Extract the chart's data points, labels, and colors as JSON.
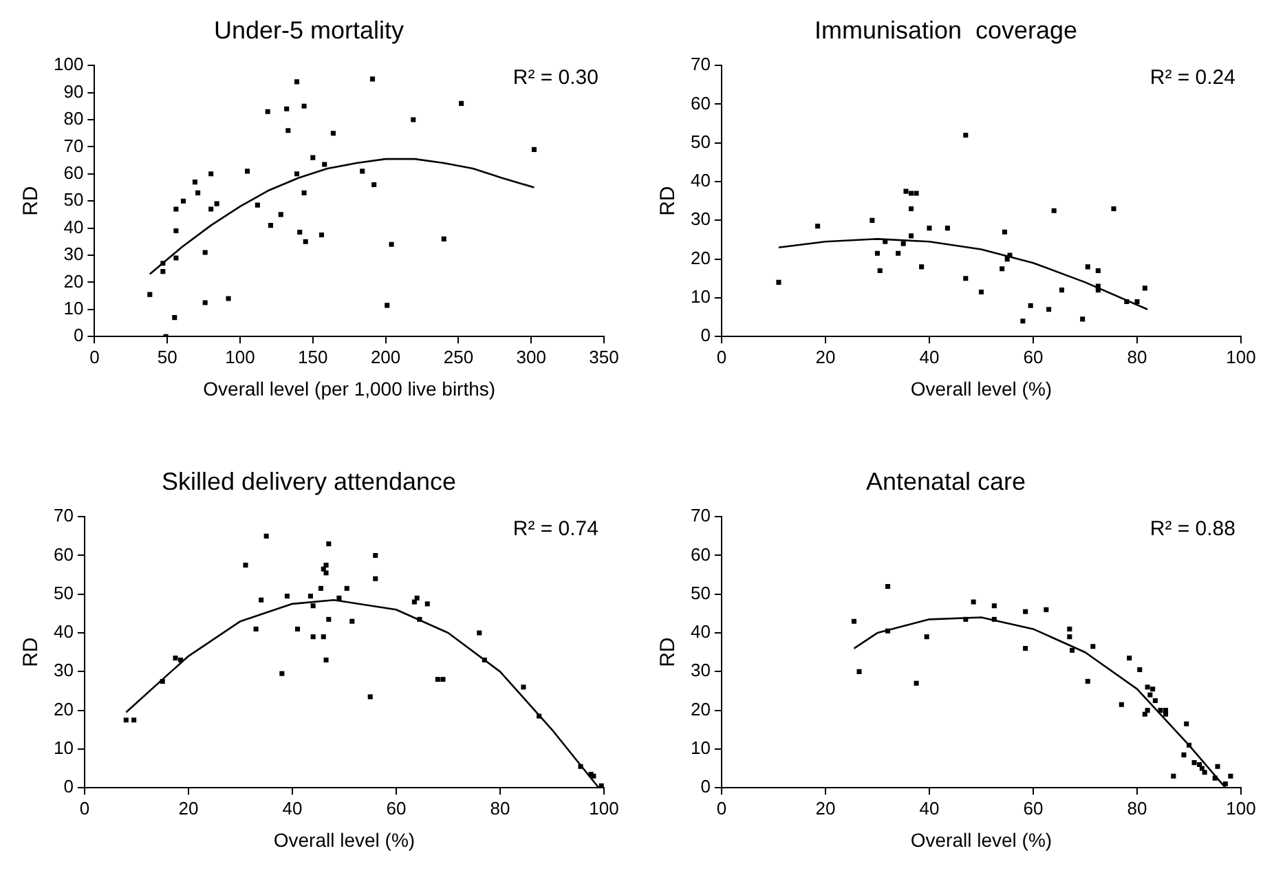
{
  "chart_data": [
    {
      "type": "scatter",
      "title": "Under-5 mortality",
      "xlabel": "Overall level (per 1,000 live births)",
      "ylabel": "RD",
      "annotations": [
        "R² = 0.30"
      ],
      "xlim": [
        0,
        350
      ],
      "xticks": [
        0,
        50,
        100,
        150,
        200,
        250,
        300,
        350
      ],
      "ylim": [
        0,
        100
      ],
      "yticks": [
        0,
        10,
        20,
        30,
        40,
        50,
        60,
        70,
        80,
        90,
        100
      ],
      "grid": false,
      "legend": false,
      "marker": "square",
      "series": [
        {
          "color": "#000000",
          "x": [
            38,
            47,
            47,
            49,
            56,
            56,
            56,
            55,
            61,
            69,
            71,
            76,
            76,
            80,
            80,
            84,
            92,
            105,
            112,
            119,
            121,
            128,
            132,
            133,
            139,
            139,
            141,
            144,
            144,
            145,
            150,
            156,
            158,
            164,
            184,
            191,
            192,
            201,
            204,
            219,
            240,
            252,
            302
          ],
          "values": [
            15.5,
            27,
            24,
            0,
            39,
            47,
            29,
            7,
            50,
            57,
            53,
            31,
            12.5,
            47,
            60,
            49,
            14,
            61,
            48.5,
            83,
            41,
            45,
            84,
            76,
            94,
            60,
            38.5,
            85,
            53,
            35,
            66,
            37.5,
            63.5,
            75,
            61,
            95,
            56,
            11.5,
            34,
            80,
            36,
            86,
            69
          ]
        },
        {
          "type": "line",
          "marker": "none",
          "color": "#000000",
          "x": [
            38,
            60,
            80,
            100,
            120,
            140,
            160,
            180,
            200,
            220,
            240,
            260,
            280,
            302
          ],
          "values": [
            23,
            33,
            41,
            48,
            54,
            58.5,
            62,
            64,
            65.5,
            65.5,
            64,
            62,
            58.5,
            55
          ]
        }
      ]
    },
    {
      "type": "scatter",
      "title": "Immunisation  coverage",
      "xlabel": "Overall level (%)",
      "ylabel": "RD",
      "annotations": [
        "R² = 0.24"
      ],
      "xlim": [
        0,
        100
      ],
      "xticks": [
        0,
        20,
        40,
        60,
        80,
        100
      ],
      "ylim": [
        0,
        70
      ],
      "yticks": [
        0,
        10,
        20,
        30,
        40,
        50,
        60,
        70
      ],
      "grid": false,
      "legend": false,
      "marker": "square",
      "series": [
        {
          "color": "#000000",
          "x": [
            11,
            18.5,
            29,
            30,
            30.5,
            31.5,
            34,
            35,
            35.5,
            36.5,
            37.5,
            36.5,
            36.5,
            38.5,
            40,
            43.5,
            47,
            47,
            50,
            54,
            54.5,
            55,
            55.5,
            58,
            59.5,
            63,
            64,
            65.5,
            69.5,
            70.5,
            72.5,
            72.5,
            72.5,
            75.5,
            78,
            80,
            81.5
          ],
          "values": [
            14,
            28.5,
            30,
            21.5,
            17,
            24.5,
            21.5,
            24,
            37.5,
            37,
            37,
            33,
            26,
            18,
            28,
            28,
            52,
            15,
            11.5,
            17.5,
            27,
            20,
            21,
            4,
            8,
            7,
            32.5,
            12,
            4.5,
            18,
            17,
            13,
            12,
            33,
            9,
            9,
            12.5
          ]
        },
        {
          "type": "line",
          "marker": "none",
          "color": "#000000",
          "x": [
            11,
            20,
            30,
            40,
            50,
            60,
            70,
            82
          ],
          "values": [
            23,
            24.5,
            25.2,
            24.5,
            22.5,
            19,
            14,
            7
          ]
        }
      ]
    },
    {
      "type": "scatter",
      "title": "Skilled delivery attendance",
      "xlabel": "Overall level (%)",
      "ylabel": "RD",
      "annotations": [
        "R² = 0.74"
      ],
      "xlim": [
        0,
        100
      ],
      "xticks": [
        0,
        20,
        40,
        60,
        80,
        100
      ],
      "ylim": [
        0,
        70
      ],
      "yticks": [
        0,
        10,
        20,
        30,
        40,
        50,
        60,
        70
      ],
      "grid": false,
      "legend": false,
      "marker": "square",
      "series": [
        {
          "color": "#000000",
          "x": [
            8,
            9.5,
            15,
            17.5,
            18.5,
            31,
            33,
            34,
            35,
            38,
            39,
            41,
            43.5,
            44,
            44,
            45.5,
            46,
            46,
            46.5,
            46.5,
            47,
            46.5,
            47,
            49,
            50.5,
            51.5,
            55,
            56,
            56,
            63.5,
            64,
            64.5,
            66,
            68,
            69,
            76,
            77,
            84.5,
            87.5,
            95.5,
            97.5,
            98,
            99.5
          ],
          "values": [
            17.5,
            17.5,
            27.5,
            33.5,
            33,
            57.5,
            41,
            48.5,
            65,
            29.5,
            49.5,
            41,
            49.5,
            47,
            39,
            51.5,
            56.5,
            39,
            57.5,
            55.5,
            63,
            33,
            43.5,
            49,
            51.5,
            43,
            23.5,
            60,
            54,
            48,
            49,
            43.5,
            47.5,
            28,
            28,
            40,
            33,
            26,
            18.5,
            5.5,
            3.5,
            3,
            0.5
          ]
        },
        {
          "type": "line",
          "marker": "none",
          "color": "#000000",
          "x": [
            8,
            15,
            20,
            30,
            40,
            48,
            60,
            70,
            80,
            90,
            99
          ],
          "values": [
            19.5,
            28,
            34,
            43,
            47.5,
            48.5,
            46,
            40,
            30,
            15,
            0
          ]
        }
      ]
    },
    {
      "type": "scatter",
      "title": "Antenatal care",
      "xlabel": "Overall level (%)",
      "ylabel": "RD",
      "annotations": [
        "R² = 0.88"
      ],
      "xlim": [
        0,
        100
      ],
      "xticks": [
        0,
        20,
        40,
        60,
        80,
        100
      ],
      "ylim": [
        0,
        70
      ],
      "yticks": [
        0,
        10,
        20,
        30,
        40,
        50,
        60,
        70
      ],
      "grid": false,
      "legend": false,
      "marker": "square",
      "series": [
        {
          "color": "#000000",
          "x": [
            25.5,
            26.5,
            32,
            32,
            37.5,
            39.5,
            47,
            48.5,
            52.5,
            52.5,
            58.5,
            58.5,
            62.5,
            67,
            67,
            67.5,
            70.5,
            71.5,
            77,
            78.5,
            80.5,
            81.5,
            82,
            82,
            82.5,
            83,
            83.5,
            84.5,
            85.5,
            85.5,
            87,
            89,
            89.5,
            90,
            91,
            92,
            92.5,
            93,
            95,
            95.5,
            97,
            98
          ],
          "values": [
            43,
            30,
            52,
            40.5,
            27,
            39,
            43.5,
            48,
            47,
            43.5,
            36,
            45.5,
            46,
            41,
            39,
            35.5,
            27.5,
            36.5,
            21.5,
            33.5,
            30.5,
            19,
            26,
            20,
            24,
            25.5,
            22.5,
            20,
            19,
            20,
            3,
            8.5,
            16.5,
            11,
            6.5,
            6,
            5,
            4,
            2.5,
            5.5,
            1,
            3
          ]
        },
        {
          "type": "line",
          "marker": "none",
          "color": "#000000",
          "x": [
            25.5,
            30,
            40,
            50,
            60,
            70,
            80,
            90,
            97
          ],
          "values": [
            36,
            40,
            43.5,
            44,
            41,
            35,
            25.5,
            11,
            0
          ]
        }
      ]
    }
  ]
}
